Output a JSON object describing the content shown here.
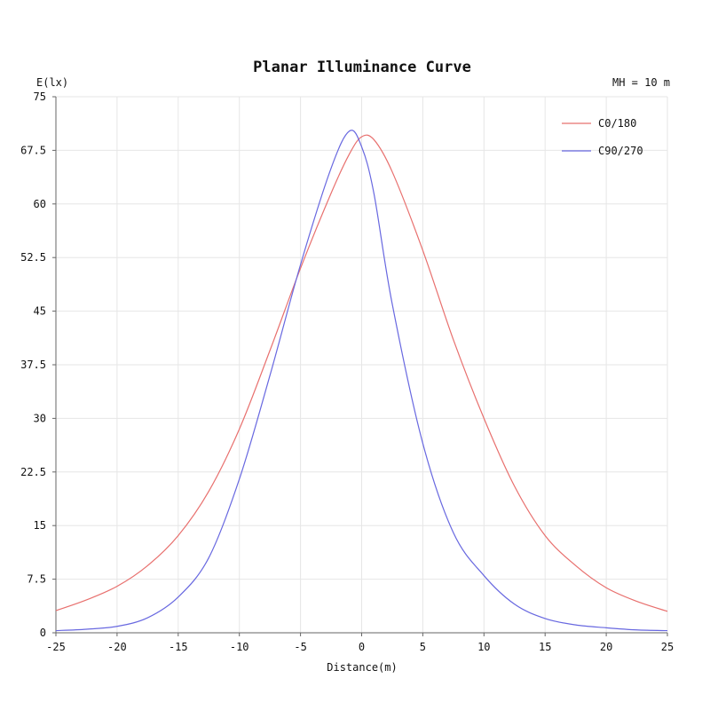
{
  "chart_data": {
    "type": "line",
    "title": "Planar Illuminance Curve",
    "ylabel": "E(lx)",
    "xlabel": "Distance(m)",
    "annotation": "MH = 10 m",
    "xlim": [
      -25,
      25
    ],
    "ylim": [
      0,
      75
    ],
    "x_ticks": [
      -25,
      -20,
      -15,
      -10,
      -5,
      0,
      5,
      10,
      15,
      20,
      25
    ],
    "y_ticks": [
      0,
      7.5,
      15,
      22.5,
      30,
      37.5,
      45,
      52.5,
      60,
      67.5,
      75
    ],
    "legend_position": "top-right",
    "grid": true,
    "series": [
      {
        "name": "C0/180",
        "color": "#e8706e",
        "points": [
          [
            -25,
            3.1
          ],
          [
            -22.5,
            4.6
          ],
          [
            -20,
            6.5
          ],
          [
            -17.5,
            9.4
          ],
          [
            -15,
            13.6
          ],
          [
            -12.5,
            19.8
          ],
          [
            -10,
            28.5
          ],
          [
            -7.5,
            39.5
          ],
          [
            -5,
            51.0
          ],
          [
            -2.5,
            61.5
          ],
          [
            -1,
            67.0
          ],
          [
            0,
            69.4
          ],
          [
            1,
            69.0
          ],
          [
            2.5,
            64.5
          ],
          [
            5,
            53.5
          ],
          [
            7.5,
            41.0
          ],
          [
            10,
            30.0
          ],
          [
            12.5,
            20.5
          ],
          [
            15,
            13.6
          ],
          [
            17.5,
            9.4
          ],
          [
            20,
            6.3
          ],
          [
            22.5,
            4.4
          ],
          [
            25,
            3.0
          ]
        ]
      },
      {
        "name": "C90/270",
        "color": "#6868e0",
        "points": [
          [
            -25,
            0.3
          ],
          [
            -22.5,
            0.5
          ],
          [
            -20,
            0.9
          ],
          [
            -17.5,
            2.1
          ],
          [
            -15,
            5.0
          ],
          [
            -12.5,
            10.5
          ],
          [
            -10,
            21.5
          ],
          [
            -7.5,
            36.0
          ],
          [
            -5,
            51.5
          ],
          [
            -2.5,
            65.0
          ],
          [
            -1,
            70.2
          ],
          [
            0,
            68.0
          ],
          [
            1,
            61.5
          ],
          [
            2.5,
            46.0
          ],
          [
            5,
            26.5
          ],
          [
            7.5,
            14.0
          ],
          [
            10,
            8.0
          ],
          [
            12.5,
            4.0
          ],
          [
            15,
            2.0
          ],
          [
            17.5,
            1.1
          ],
          [
            20,
            0.7
          ],
          [
            22.5,
            0.4
          ],
          [
            25,
            0.3
          ]
        ]
      }
    ]
  }
}
